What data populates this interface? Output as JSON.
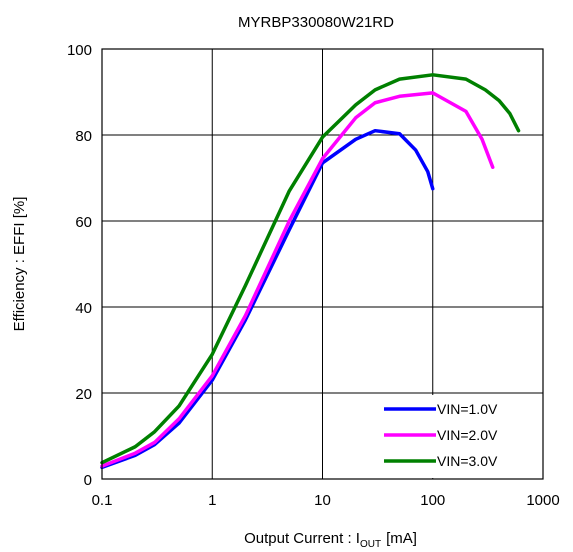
{
  "chart_data": {
    "type": "line",
    "title": "MYRBP330080W21RD",
    "ylabel": "Efficiency : EFFI [%]",
    "xlabel": {
      "prefix": "Output Current : I",
      "subscript": "OUT",
      "suffix": "[mA]"
    },
    "x_scale": "log",
    "xlim": [
      0.1,
      1000
    ],
    "ylim": [
      0,
      100
    ],
    "x_ticks": [
      {
        "value": 0.1,
        "label": "0.1"
      },
      {
        "value": 1,
        "label": "1"
      },
      {
        "value": 10,
        "label": "10"
      },
      {
        "value": 100,
        "label": "100"
      },
      {
        "value": 1000,
        "label": "1000"
      }
    ],
    "y_ticks": [
      {
        "value": 0,
        "label": "0"
      },
      {
        "value": 20,
        "label": "20"
      },
      {
        "value": 40,
        "label": "40"
      },
      {
        "value": 60,
        "label": "60"
      },
      {
        "value": 80,
        "label": "80"
      },
      {
        "value": 100,
        "label": "100"
      }
    ],
    "grid": true,
    "legend_position": "bottom-right",
    "series": [
      {
        "name": "VIN=1.0V",
        "color": "#0000ff",
        "points": [
          [
            0.1,
            2.7
          ],
          [
            0.2,
            5.5
          ],
          [
            0.3,
            8
          ],
          [
            0.5,
            13
          ],
          [
            1,
            23
          ],
          [
            2,
            37
          ],
          [
            5,
            58
          ],
          [
            10,
            73.5
          ],
          [
            20,
            79
          ],
          [
            30,
            81
          ],
          [
            50,
            80.3
          ],
          [
            70,
            76.5
          ],
          [
            90,
            71.5
          ],
          [
            100,
            67.5
          ]
        ]
      },
      {
        "name": "VIN=2.0V",
        "color": "#ff00ff",
        "points": [
          [
            0.1,
            3
          ],
          [
            0.2,
            6
          ],
          [
            0.3,
            8.5
          ],
          [
            0.5,
            14
          ],
          [
            1,
            24
          ],
          [
            2,
            38
          ],
          [
            5,
            60
          ],
          [
            10,
            74.5
          ],
          [
            20,
            84
          ],
          [
            30,
            87.5
          ],
          [
            50,
            89
          ],
          [
            100,
            89.8
          ],
          [
            200,
            85.5
          ],
          [
            280,
            79
          ],
          [
            350,
            72.5
          ]
        ]
      },
      {
        "name": "VIN=3.0V",
        "color": "#008000",
        "points": [
          [
            0.1,
            3.8
          ],
          [
            0.2,
            7.5
          ],
          [
            0.3,
            11
          ],
          [
            0.5,
            17
          ],
          [
            1,
            29
          ],
          [
            2,
            45
          ],
          [
            5,
            67
          ],
          [
            10,
            79.5
          ],
          [
            20,
            87
          ],
          [
            30,
            90.5
          ],
          [
            50,
            93
          ],
          [
            100,
            94
          ],
          [
            200,
            93
          ],
          [
            300,
            90.5
          ],
          [
            400,
            88
          ],
          [
            500,
            85
          ],
          [
            600,
            81
          ]
        ]
      }
    ]
  }
}
